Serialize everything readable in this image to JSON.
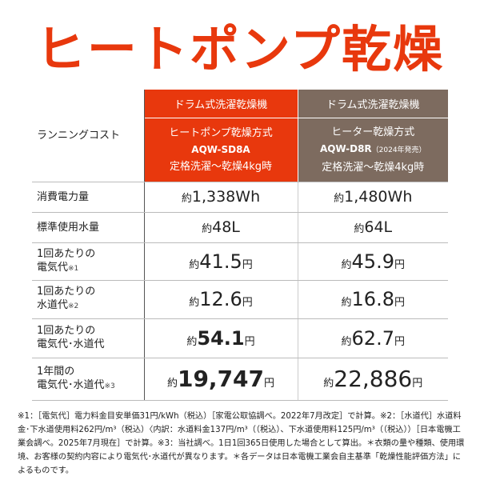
{
  "title": "ヒートポンプ乾燥",
  "colors": {
    "accent": "#e8380d",
    "secondary": "#7d6b5f"
  },
  "header": {
    "category1": "ドラム式洗濯乾燥機",
    "category2": "ドラム式洗濯乾燥機",
    "row_label": "ランニングコスト",
    "col1": {
      "method": "ヒートポンプ乾燥方式",
      "model": "AQW-SD8A",
      "note": "",
      "condition": "定格洗濯〜乾燥4kg時"
    },
    "col2": {
      "method": "ヒーター乾燥方式",
      "model": "AQW-D8R",
      "note": "（2024年発売）",
      "condition": "定格洗濯〜乾燥4kg時"
    }
  },
  "rows": [
    {
      "label1": "消費電力量",
      "label2": "",
      "mark": "",
      "prefix": "約",
      "v1": "1,338",
      "v2": "1,480",
      "unit": "Wh"
    },
    {
      "label1": "標準使用水量",
      "label2": "",
      "mark": "",
      "prefix": "約",
      "v1": "48",
      "v2": "64",
      "unit": "L"
    },
    {
      "label1": "1回あたりの",
      "label2": "電気代",
      "mark": "※1",
      "prefix": "約",
      "v1": "41.5",
      "v2": "45.9",
      "unit": "円"
    },
    {
      "label1": "1回あたりの",
      "label2": "水道代",
      "mark": "※2",
      "prefix": "約",
      "v1": "12.6",
      "v2": "16.8",
      "unit": "円"
    },
    {
      "label1": "1回あたりの",
      "label2": "電気代･水道代",
      "mark": "",
      "prefix": "約",
      "v1": "54.1",
      "v2": "62.7",
      "unit": "円"
    },
    {
      "label1": "1年間の",
      "label2": "電気代･水道代",
      "mark": "※3",
      "prefix": "約",
      "v1": "19,747",
      "v2": "22,886",
      "unit": "円"
    }
  ],
  "footnote": "※1：［電気代］電力料金目安単価31円/kWh（税込）［家電公取協調べ。2022年7月改定］で計算。※2：［水道代］水道料金･下水道使用料262円/m³（税込）〈内訳：水道料金137円/m³（（税込）、下水道使用料125円/m³（（税込））［日本電機工業会調べ。2025年7月現在］で計算。※3：当社調べ。1日1回365日使用した場合として算出。＊衣類の量や種類、使用環境、お客様の契約内容により電気代･水道代が異なります。＊各データは日本電機工業会自主基準「乾燥性能評価方法」によるものです。"
}
